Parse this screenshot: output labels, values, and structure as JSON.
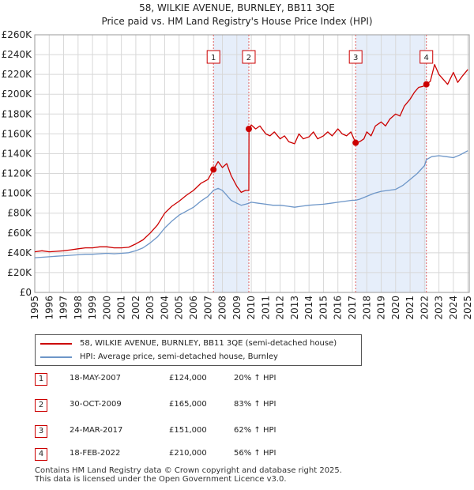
{
  "title_line1": "58, WILKIE AVENUE, BURNLEY, BB11 3QE",
  "title_line2": "Price paid vs. HM Land Registry's House Price Index (HPI)",
  "legend": {
    "property": "58, WILKIE AVENUE, BURNLEY, BB11 3QE (semi-detached house)",
    "hpi": "HPI: Average price, semi-detached house, Burnley"
  },
  "colors": {
    "property": "#cc0000",
    "hpi": "#6d96c8",
    "shade": "#e6eefa",
    "grid": "#d8d8d8",
    "marker_line": "#e06060"
  },
  "sales": [
    {
      "num": "1",
      "date": "18-MAY-2007",
      "price": "£124,000",
      "hpi": "20% ↑ HPI"
    },
    {
      "num": "2",
      "date": "30-OCT-2009",
      "price": "£165,000",
      "hpi": "83% ↑ HPI"
    },
    {
      "num": "3",
      "date": "24-MAR-2017",
      "price": "£151,000",
      "hpi": "62% ↑ HPI"
    },
    {
      "num": "4",
      "date": "18-FEB-2022",
      "price": "£210,000",
      "hpi": "56% ↑ HPI"
    }
  ],
  "footer_line1": "Contains HM Land Registry data © Crown copyright and database right 2025.",
  "footer_line2": "This data is licensed under the Open Government Licence v3.0.",
  "chart_data": {
    "type": "line",
    "title": "58, WILKIE AVENUE, BURNLEY, BB11 3QE",
    "subtitle": "Price paid vs. HM Land Registry's House Price Index (HPI)",
    "xlabel": "",
    "ylabel": "",
    "xlim": [
      1995,
      2025.1
    ],
    "ylim": [
      0,
      260000
    ],
    "grid": true,
    "legend_position": "bottom",
    "x_ticks": [
      "1995",
      "1996",
      "1997",
      "1998",
      "1999",
      "2000",
      "2001",
      "2002",
      "2003",
      "2004",
      "2005",
      "2006",
      "2007",
      "2008",
      "2009",
      "2010",
      "2011",
      "2012",
      "2013",
      "2014",
      "2015",
      "2016",
      "2017",
      "2018",
      "2019",
      "2020",
      "2021",
      "2022",
      "2023",
      "2024",
      "2025"
    ],
    "y_ticks": [
      "£0",
      "£20K",
      "£40K",
      "£60K",
      "£80K",
      "£100K",
      "£120K",
      "£140K",
      "£160K",
      "£180K",
      "£200K",
      "£220K",
      "£240K",
      "£260K"
    ],
    "shaded_ranges": [
      [
        2007.38,
        2009.83
      ],
      [
        2017.23,
        2022.13
      ]
    ],
    "sale_markers": [
      {
        "label": "1",
        "x": 2007.38,
        "y": 124000
      },
      {
        "label": "2",
        "x": 2009.83,
        "y": 165000
      },
      {
        "label": "3",
        "x": 2017.23,
        "y": 151000
      },
      {
        "label": "4",
        "x": 2022.13,
        "y": 210000
      }
    ],
    "series": [
      {
        "name": "58, WILKIE AVENUE, BURNLEY, BB11 3QE (semi-detached house)",
        "x": [
          1995,
          1995.5,
          1996,
          1996.5,
          1997,
          1997.5,
          1998,
          1998.5,
          1999,
          1999.5,
          2000,
          2000.5,
          2001,
          2001.5,
          2002,
          2002.5,
          2003,
          2003.5,
          2004,
          2004.5,
          2005,
          2005.5,
          2006,
          2006.5,
          2007,
          2007.38,
          2007.7,
          2008,
          2008.3,
          2008.6,
          2009,
          2009.3,
          2009.6,
          2009.83,
          2009.84,
          2010,
          2010.3,
          2010.6,
          2011,
          2011.3,
          2011.6,
          2012,
          2012.3,
          2012.6,
          2013,
          2013.3,
          2013.6,
          2014,
          2014.3,
          2014.6,
          2015,
          2015.3,
          2015.6,
          2016,
          2016.3,
          2016.6,
          2016.9,
          2017.23,
          2017.5,
          2017.8,
          2018,
          2018.3,
          2018.6,
          2019,
          2019.3,
          2019.6,
          2020,
          2020.3,
          2020.6,
          2021,
          2021.3,
          2021.6,
          2021.9,
          2022.13,
          2022.4,
          2022.7,
          2023,
          2023.3,
          2023.6,
          2024,
          2024.3,
          2024.6,
          2025
        ],
        "values": [
          41000,
          42000,
          41000,
          41500,
          42000,
          43000,
          44000,
          45000,
          45000,
          46000,
          46000,
          45000,
          45000,
          45500,
          49000,
          53000,
          60000,
          68000,
          80000,
          87000,
          92000,
          98000,
          103000,
          110000,
          114000,
          124000,
          132000,
          126000,
          130000,
          118000,
          107000,
          101000,
          103000,
          103000,
          165000,
          169000,
          165000,
          168000,
          160000,
          158000,
          162000,
          155000,
          158000,
          152000,
          150000,
          160000,
          155000,
          157000,
          162000,
          155000,
          158000,
          162000,
          158000,
          165000,
          160000,
          158000,
          162000,
          151000,
          152000,
          155000,
          162000,
          158000,
          168000,
          172000,
          168000,
          175000,
          180000,
          178000,
          188000,
          195000,
          202000,
          207000,
          208000,
          210000,
          213000,
          230000,
          220000,
          215000,
          210000,
          222000,
          212000,
          218000,
          225000
        ]
      },
      {
        "name": "HPI: Average price, semi-detached house, Burnley",
        "x": [
          1995,
          1995.5,
          1996,
          1996.5,
          1997,
          1997.5,
          1998,
          1998.5,
          1999,
          1999.5,
          2000,
          2000.5,
          2001,
          2001.5,
          2002,
          2002.5,
          2003,
          2003.5,
          2004,
          2004.5,
          2005,
          2005.5,
          2006,
          2006.5,
          2007,
          2007.38,
          2007.7,
          2008,
          2008.3,
          2008.6,
          2009,
          2009.3,
          2009.6,
          2009.83,
          2010,
          2010.5,
          2011,
          2011.5,
          2012,
          2012.5,
          2013,
          2013.5,
          2014,
          2014.5,
          2015,
          2015.5,
          2016,
          2016.5,
          2017,
          2017.23,
          2017.5,
          2018,
          2018.5,
          2019,
          2019.5,
          2020,
          2020.5,
          2021,
          2021.5,
          2022,
          2022.13,
          2022.5,
          2023,
          2023.5,
          2024,
          2024.5,
          2025
        ],
        "values": [
          35000,
          35500,
          36000,
          36500,
          37000,
          37500,
          38000,
          38500,
          38500,
          39000,
          39500,
          39000,
          39500,
          40000,
          42000,
          45000,
          50000,
          56000,
          65000,
          72000,
          78000,
          82000,
          86000,
          92000,
          97000,
          103000,
          105000,
          103000,
          98000,
          93000,
          90000,
          88000,
          89000,
          90000,
          91000,
          90000,
          89000,
          88000,
          88000,
          87000,
          86000,
          87000,
          88000,
          88500,
          89000,
          90000,
          91000,
          92000,
          93000,
          93000,
          94000,
          97000,
          100000,
          102000,
          103000,
          104000,
          108000,
          114000,
          120000,
          128000,
          134000,
          137000,
          138000,
          137000,
          136000,
          139000,
          143000
        ]
      }
    ]
  }
}
